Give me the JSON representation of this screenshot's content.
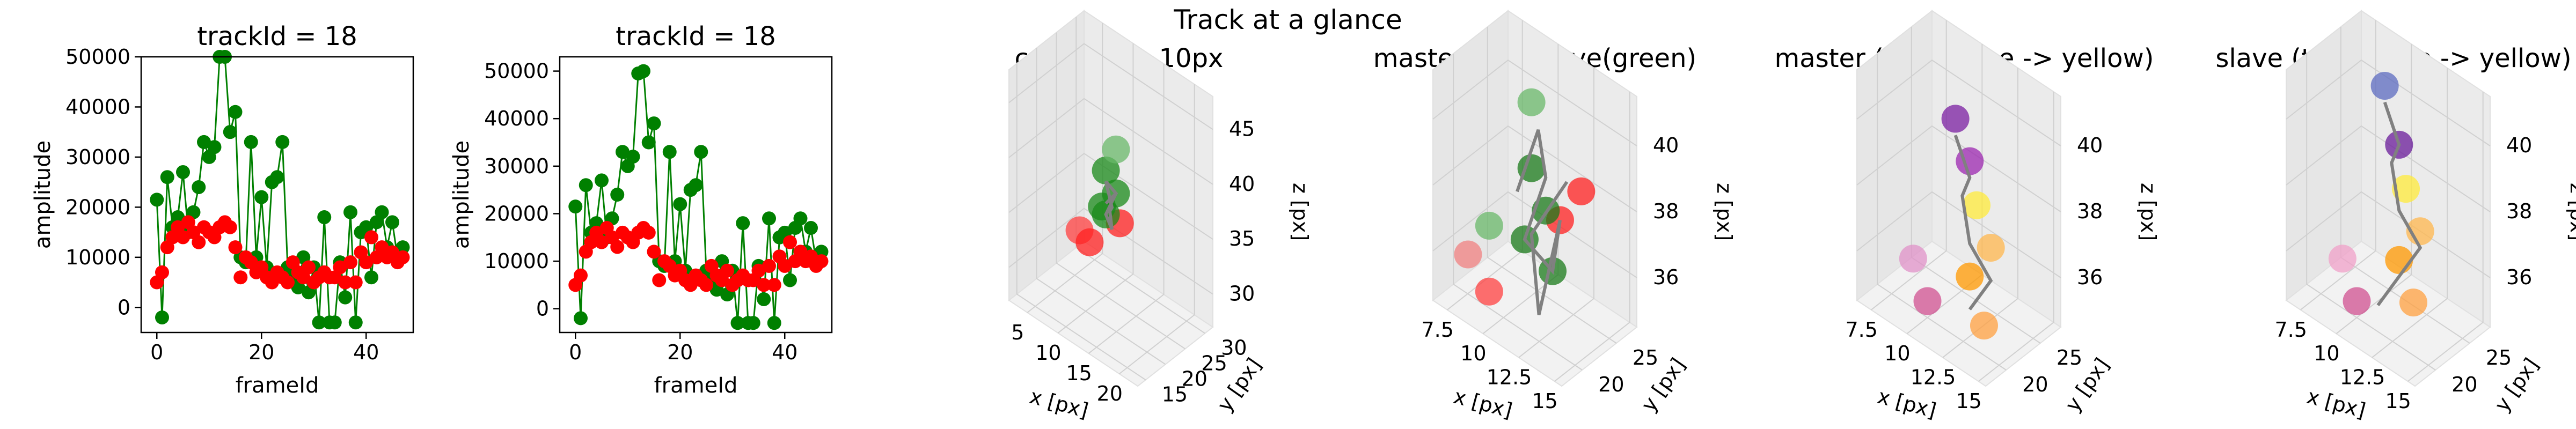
{
  "suptitle": "Track at a glance",
  "chart_data": [
    {
      "type": "scatter",
      "title": "trackId = 18",
      "xlabel": "frameId",
      "ylabel": "amplitude",
      "xlim": [
        -3,
        49
      ],
      "ylim": [
        -5000,
        50000
      ],
      "xticks": [
        0,
        20,
        40
      ],
      "yticks": [
        0,
        10000,
        20000,
        30000,
        40000,
        50000
      ],
      "series": [
        {
          "color": "#008000",
          "connected": true,
          "x": [
            0,
            1,
            2,
            3,
            4,
            5,
            6,
            7,
            8,
            9,
            10,
            11,
            12,
            13,
            14,
            15,
            16,
            17,
            18,
            19,
            20,
            21,
            22,
            23,
            24,
            25,
            26,
            27,
            28,
            29,
            30,
            31,
            32,
            33,
            34,
            35,
            36,
            37,
            38,
            39,
            40,
            41,
            42,
            43,
            44,
            45,
            46,
            47
          ],
          "y": [
            21500,
            -2000,
            26000,
            16000,
            18000,
            27000,
            15000,
            19000,
            24000,
            33000,
            30000,
            32000,
            50000,
            50000,
            35000,
            39000,
            10000,
            9000,
            33000,
            10000,
            22000,
            8000,
            25000,
            26000,
            33000,
            8000,
            6000,
            4000,
            10000,
            3000,
            8000,
            -3000,
            18000,
            -3000,
            -3000,
            9000,
            2000,
            19000,
            -3000,
            15000,
            16000,
            6000,
            17000,
            19000,
            12000,
            17000,
            10000,
            12000
          ]
        },
        {
          "color": "#ff0000",
          "connected": false,
          "x": [
            0,
            1,
            2,
            3,
            4,
            5,
            6,
            7,
            8,
            9,
            10,
            11,
            12,
            13,
            14,
            15,
            16,
            17,
            18,
            19,
            20,
            21,
            22,
            23,
            24,
            25,
            26,
            27,
            28,
            29,
            30,
            31,
            32,
            33,
            34,
            35,
            36,
            37,
            38,
            39,
            40,
            41,
            42,
            43,
            44,
            45,
            46,
            47
          ],
          "y": [
            5000,
            7000,
            12000,
            14000,
            16000,
            14000,
            17000,
            15000,
            13000,
            16000,
            15000,
            14000,
            16000,
            17000,
            16000,
            12000,
            6000,
            10000,
            9000,
            7000,
            8000,
            6000,
            5000,
            7000,
            6000,
            5000,
            9000,
            7000,
            6000,
            8000,
            5000,
            6000,
            7000,
            6000,
            6000,
            8000,
            5000,
            9000,
            5000,
            11000,
            9000,
            14000,
            10000,
            12000,
            10000,
            11000,
            9000,
            10000
          ]
        }
      ]
    },
    {
      "type": "scatter",
      "title": "trackId = 18",
      "xlabel": "frameId",
      "ylabel": "amplitude",
      "xlim": [
        -3,
        49
      ],
      "ylim": [
        -5000,
        53000
      ],
      "xticks": [
        0,
        20,
        40
      ],
      "yticks": [
        0,
        10000,
        20000,
        30000,
        40000,
        50000
      ],
      "series": [
        {
          "color": "#008000",
          "connected": true,
          "x": [
            0,
            1,
            2,
            3,
            4,
            5,
            6,
            7,
            8,
            9,
            10,
            11,
            12,
            13,
            14,
            15,
            16,
            17,
            18,
            19,
            20,
            21,
            22,
            23,
            24,
            25,
            26,
            27,
            28,
            29,
            30,
            31,
            32,
            33,
            34,
            35,
            36,
            37,
            38,
            39,
            40,
            41,
            42,
            43,
            44,
            45,
            46,
            47
          ],
          "y": [
            21500,
            -2000,
            26000,
            16000,
            18000,
            27000,
            15000,
            19000,
            24000,
            33000,
            30000,
            32000,
            49500,
            50000,
            35000,
            39000,
            10000,
            9000,
            33000,
            10000,
            22000,
            8000,
            25000,
            26000,
            33000,
            8000,
            6000,
            4000,
            10000,
            3000,
            8000,
            -3000,
            18000,
            -3000,
            -3000,
            9000,
            2000,
            19000,
            -3000,
            15000,
            16000,
            6000,
            17000,
            19000,
            12000,
            17000,
            10000,
            12000
          ]
        },
        {
          "color": "#ff0000",
          "connected": false,
          "x": [
            0,
            1,
            2,
            3,
            4,
            5,
            6,
            7,
            8,
            9,
            10,
            11,
            12,
            13,
            14,
            15,
            16,
            17,
            18,
            19,
            20,
            21,
            22,
            23,
            24,
            25,
            26,
            27,
            28,
            29,
            30,
            31,
            32,
            33,
            34,
            35,
            36,
            37,
            38,
            39,
            40,
            41,
            42,
            43,
            44,
            45,
            46,
            47
          ],
          "y": [
            5000,
            7000,
            12000,
            14000,
            16000,
            14000,
            17000,
            15000,
            13000,
            16000,
            15000,
            14000,
            16000,
            17000,
            16000,
            12000,
            6000,
            10000,
            9000,
            7000,
            8000,
            6000,
            5000,
            7000,
            6000,
            5000,
            9000,
            7000,
            6000,
            8000,
            5000,
            6000,
            7000,
            6000,
            6000,
            8000,
            5000,
            9000,
            5000,
            11000,
            9000,
            14000,
            10000,
            12000,
            10000,
            11000,
            9000,
            10000
          ]
        }
      ]
    },
    {
      "type": "scatter3d",
      "title": "context +- 10px",
      "xlabel": "x [px]",
      "ylabel": "y [px]",
      "zlabel": "z [px]",
      "xlim": [
        2,
        23
      ],
      "ylim": [
        13,
        32
      ],
      "zlim": [
        27,
        48
      ],
      "xticks": [
        5,
        10,
        15,
        20
      ],
      "yticks": [
        15,
        20,
        25,
        30
      ],
      "zticks": [
        30,
        35,
        40,
        45
      ],
      "path": [
        [
          12,
          22,
          37
        ],
        [
          13,
          23,
          38
        ],
        [
          12,
          22,
          39
        ],
        [
          13,
          22,
          37
        ],
        [
          12,
          23,
          36
        ],
        [
          13,
          22,
          35
        ],
        [
          12,
          22,
          36
        ],
        [
          13,
          23,
          38
        ]
      ],
      "points": [
        {
          "x": 9,
          "y": 20,
          "z": 34,
          "c": "#ff4040"
        },
        {
          "x": 10,
          "y": 21,
          "z": 33,
          "c": "#ff2020"
        },
        {
          "x": 13,
          "y": 24,
          "z": 35,
          "c": "#ff2020"
        },
        {
          "x": 12,
          "y": 22,
          "z": 40,
          "c": "#1a8a1a"
        },
        {
          "x": 13,
          "y": 23,
          "z": 38,
          "c": "#1a8a1a"
        },
        {
          "x": 12,
          "y": 22,
          "z": 36,
          "c": "#1a8a1a"
        },
        {
          "x": 13,
          "y": 23,
          "z": 42,
          "c": "#6ab86a"
        },
        {
          "x": 12,
          "y": 21,
          "z": 37,
          "c": "#1a8a1a"
        }
      ]
    },
    {
      "type": "scatter3d",
      "title": "master(red) slave(green)",
      "xlabel": "x [px]",
      "ylabel": "y [px]",
      "zlabel": "z [px]",
      "xlim": [
        6.5,
        15.5
      ],
      "ylim": [
        17,
        28
      ],
      "zlim": [
        34.5,
        41.5
      ],
      "xticks": [
        7.5,
        10.0,
        12.5,
        15.0
      ],
      "yticks": [
        20,
        25
      ],
      "zticks": [
        36,
        38,
        40
      ],
      "path": [
        [
          10,
          22,
          38
        ],
        [
          11,
          23,
          40
        ],
        [
          12,
          22,
          39
        ],
        [
          11,
          21,
          37
        ],
        [
          12,
          23,
          36
        ],
        [
          13,
          22,
          38
        ],
        [
          12,
          21,
          35
        ],
        [
          11,
          22,
          37
        ],
        [
          13,
          23,
          39
        ]
      ],
      "points": [
        {
          "x": 8,
          "y": 19,
          "z": 36,
          "c": "#f08080"
        },
        {
          "x": 9,
          "y": 20,
          "z": 35,
          "c": "#ff4040"
        },
        {
          "x": 13,
          "y": 22,
          "z": 38,
          "c": "#ff2020"
        },
        {
          "x": 14,
          "y": 23,
          "z": 39,
          "c": "#ff2020"
        },
        {
          "x": 11,
          "y": 22,
          "z": 41,
          "c": "#6ab86a"
        },
        {
          "x": 11,
          "y": 22,
          "z": 39,
          "c": "#1a7a1a"
        },
        {
          "x": 12,
          "y": 22,
          "z": 38,
          "c": "#1a7a1a"
        },
        {
          "x": 11,
          "y": 21,
          "z": 37,
          "c": "#1a7a1a"
        },
        {
          "x": 12,
          "y": 23,
          "z": 36,
          "c": "#1a7a1a"
        },
        {
          "x": 9,
          "y": 20,
          "z": 37,
          "c": "#6ab86a"
        }
      ]
    },
    {
      "type": "scatter3d",
      "title": "master (time: blue -> yellow)",
      "xlabel": "x [px]",
      "ylabel": "y [px]",
      "zlabel": "z [px]",
      "xlim": [
        6.5,
        15.5
      ],
      "ylim": [
        17,
        28
      ],
      "zlim": [
        34.5,
        41.5
      ],
      "xticks": [
        7.5,
        10.0,
        12.5,
        15.0
      ],
      "yticks": [
        20,
        25
      ],
      "zticks": [
        36,
        38,
        40
      ],
      "path": [
        [
          11,
          22,
          40
        ],
        [
          12,
          22,
          39
        ],
        [
          11,
          23,
          38
        ],
        [
          12,
          22,
          37
        ],
        [
          13,
          23,
          36
        ],
        [
          12,
          22,
          35
        ]
      ],
      "points": [
        {
          "x": 11,
          "y": 22,
          "z": 40.5,
          "c": "#7b1fa2"
        },
        {
          "x": 12,
          "y": 22,
          "z": 39.5,
          "c": "#9c27b0"
        },
        {
          "x": 12,
          "y": 23,
          "z": 38,
          "c": "#ffeb3b"
        },
        {
          "x": 13,
          "y": 23,
          "z": 37,
          "c": "#ffb74d"
        },
        {
          "x": 12,
          "y": 22,
          "z": 36,
          "c": "#ff9800"
        },
        {
          "x": 9,
          "y": 20,
          "z": 36,
          "c": "#e091c8"
        },
        {
          "x": 10,
          "y": 20,
          "z": 35,
          "c": "#d05090"
        },
        {
          "x": 13,
          "y": 22,
          "z": 34.8,
          "c": "#ffa040"
        }
      ]
    },
    {
      "type": "scatter3d",
      "title": "slave (time: blue -> yellow)",
      "xlabel": "x [px]",
      "ylabel": "y [px]",
      "zlabel": "z [px]",
      "xlim": [
        6.5,
        15.5
      ],
      "ylim": [
        17,
        28
      ],
      "zlim": [
        34.5,
        41.5
      ],
      "xticks": [
        7.5,
        10.0,
        12.5,
        15.0
      ],
      "yticks": [
        20,
        25
      ],
      "zticks": [
        36,
        38,
        40
      ],
      "path": [
        [
          11,
          22,
          41
        ],
        [
          12,
          22,
          40
        ],
        [
          11,
          23,
          39
        ],
        [
          12,
          22,
          38
        ],
        [
          13,
          23,
          37
        ],
        [
          12,
          22,
          36
        ],
        [
          11,
          21,
          35
        ]
      ],
      "points": [
        {
          "x": 11,
          "y": 22,
          "z": 41.5,
          "c": "#5c6bc0"
        },
        {
          "x": 12,
          "y": 22,
          "z": 40,
          "c": "#6a1b9a"
        },
        {
          "x": 12,
          "y": 23,
          "z": 38.5,
          "c": "#ffeb3b"
        },
        {
          "x": 13,
          "y": 23,
          "z": 37.5,
          "c": "#ffb74d"
        },
        {
          "x": 12,
          "y": 22,
          "z": 36.5,
          "c": "#ff9800"
        },
        {
          "x": 9,
          "y": 20,
          "z": 36,
          "c": "#f0a0c8"
        },
        {
          "x": 10,
          "y": 20,
          "z": 35,
          "c": "#d05090"
        },
        {
          "x": 13,
          "y": 22,
          "z": 35.5,
          "c": "#ffa040"
        }
      ]
    }
  ]
}
